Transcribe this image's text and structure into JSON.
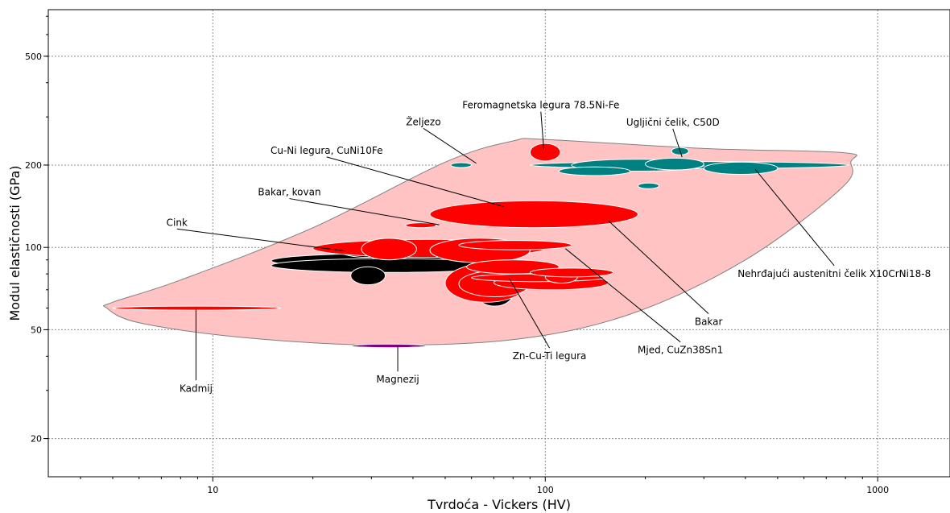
{
  "chart_data": {
    "type": "scatter",
    "xlabel": "Tvrdoća - Vickers (HV)",
    "ylabel": "Modul elastičnosti (GPa)",
    "xscale": "log",
    "yscale": "log",
    "xlim": [
      3.2,
      1650
    ],
    "ylim": [
      14.5,
      740
    ],
    "xticks": [
      10,
      100,
      1000
    ],
    "yticks": [
      20,
      50,
      100,
      200,
      500
    ],
    "grid": true,
    "colors": {
      "envelope": "#ffc3c3",
      "copper": "#ff0000",
      "zinc": "#000000",
      "steel": "#008080",
      "magnesium": "#800080"
    },
    "envelope": [
      [
        4.8,
        60
      ],
      [
        6,
        53
      ],
      [
        12,
        47
      ],
      [
        30,
        44
      ],
      [
        80,
        46
      ],
      [
        180,
        57
      ],
      [
        400,
        90
      ],
      [
        780,
        165
      ],
      [
        830,
        205
      ],
      [
        790,
        222
      ],
      [
        300,
        230
      ],
      [
        100,
        248
      ],
      [
        80,
        245
      ],
      [
        50,
        205
      ],
      [
        20,
        118
      ],
      [
        8,
        76
      ],
      [
        5,
        63
      ]
    ],
    "bubbles": [
      {
        "g": "cadmium",
        "x": [
          5,
          16
        ],
        "y": [
          59,
          61
        ]
      },
      {
        "g": "magnesium",
        "x": [
          26,
          44
        ],
        "y": [
          43,
          44.3
        ]
      },
      {
        "g": "zinc",
        "x": [
          15,
          80
        ],
        "y": [
          84,
          95
        ]
      },
      {
        "g": "zinc",
        "x": [
          15,
          75
        ],
        "y": [
          81,
          91
        ]
      },
      {
        "g": "zinc",
        "x": [
          24,
          35
        ],
        "y": [
          92,
          104
        ]
      },
      {
        "g": "zinc",
        "x": [
          26,
          33
        ],
        "y": [
          73,
          85
        ]
      },
      {
        "g": "zinc",
        "x": [
          62,
          80
        ],
        "y": [
          61,
          76
        ]
      },
      {
        "g": "copper",
        "x": [
          20,
          100
        ],
        "y": [
          92,
          107
        ]
      },
      {
        "g": "copper",
        "x": [
          28,
          41
        ],
        "y": [
          90,
          108
        ]
      },
      {
        "g": "copper",
        "x": [
          45,
          190
        ],
        "y": [
          118,
          148
        ]
      },
      {
        "g": "copper",
        "x": [
          45,
          90
        ],
        "y": [
          88,
          108
        ]
      },
      {
        "g": "copper",
        "x": [
          55,
          120
        ],
        "y": [
          98,
          106
        ]
      },
      {
        "g": "copper",
        "x": [
          50,
          88
        ],
        "y": [
          63,
          87
        ]
      },
      {
        "g": "copper",
        "x": [
          55,
          90
        ],
        "y": [
          66,
          82
        ]
      },
      {
        "g": "copper",
        "x": [
          70,
          155
        ],
        "y": [
          70,
          79
        ]
      },
      {
        "g": "copper",
        "x": [
          58,
          110
        ],
        "y": [
          80,
          90
        ]
      },
      {
        "g": "copper",
        "x": [
          60,
          150
        ],
        "y": [
          75,
          80
        ]
      },
      {
        "g": "copper",
        "x": [
          100,
          125
        ],
        "y": [
          74,
          82
        ]
      },
      {
        "g": "copper",
        "x": [
          90,
          160
        ],
        "y": [
          78,
          84
        ]
      },
      {
        "g": "copper",
        "x": [
          38,
          47
        ],
        "y": [
          118,
          123
        ]
      },
      {
        "g": "copper",
        "x": [
          90,
          111
        ],
        "y": [
          207,
          240
        ]
      },
      {
        "g": "steel",
        "x": [
          52,
          60
        ],
        "y": [
          196,
          204
        ]
      },
      {
        "g": "steel",
        "x": [
          90,
          820
        ],
        "y": [
          194,
          206
        ]
      },
      {
        "g": "steel",
        "x": [
          120,
          300
        ],
        "y": [
          190,
          210
        ]
      },
      {
        "g": "steel",
        "x": [
          200,
          300
        ],
        "y": [
          192,
          212
        ]
      },
      {
        "g": "steel",
        "x": [
          110,
          180
        ],
        "y": [
          183,
          197
        ]
      },
      {
        "g": "steel",
        "x": [
          300,
          500
        ],
        "y": [
          185,
          205
        ]
      },
      {
        "g": "steel",
        "x": [
          190,
          220
        ],
        "y": [
          164,
          172
        ]
      },
      {
        "g": "steel",
        "x": [
          240,
          270
        ],
        "y": [
          218,
          232
        ]
      }
    ],
    "annotations": [
      {
        "label": "Željezo",
        "at": [
          62,
          203
        ],
        "text_at": [
          43,
          280
        ]
      },
      {
        "label": "Feromagnetska legura 78.5Ni-Fe",
        "at": [
          99,
          228
        ],
        "text_at": [
          97,
          322
        ]
      },
      {
        "label": "Ugljični čelik, C50D",
        "at": [
          258,
          214
        ],
        "text_at": [
          242,
          279
        ]
      },
      {
        "label": "Cu-Ni legura, CuNi10Fe",
        "at": [
          75,
          141
        ],
        "text_at": [
          22,
          220
        ]
      },
      {
        "label": "Bakar, kovan",
        "at": [
          48,
          121
        ],
        "text_at": [
          17,
          155
        ]
      },
      {
        "label": "Cink",
        "at": [
          25,
          97
        ],
        "text_at": [
          7.8,
          120
        ]
      },
      {
        "label": "Nehrđajući austenitni čelik X10CrNi18-8",
        "at": [
          428,
          193
        ],
        "text_at": [
          740,
          78
        ]
      },
      {
        "label": "Bakar",
        "at": [
          155,
          125
        ],
        "text_at": [
          310,
          52
        ]
      },
      {
        "label": "Mjed, CuZn38Sn1",
        "at": [
          115,
          99
        ],
        "text_at": [
          255,
          41
        ]
      },
      {
        "label": "Zn-Cu-Ti legura",
        "at": [
          78,
          77
        ],
        "text_at": [
          103,
          39
        ]
      },
      {
        "label": "Magnezij",
        "at": [
          36,
          43.6
        ],
        "text_at": [
          36,
          32
        ]
      },
      {
        "label": "Kadmij",
        "at": [
          8.9,
          59.5
        ],
        "text_at": [
          8.9,
          29.7
        ]
      }
    ]
  }
}
